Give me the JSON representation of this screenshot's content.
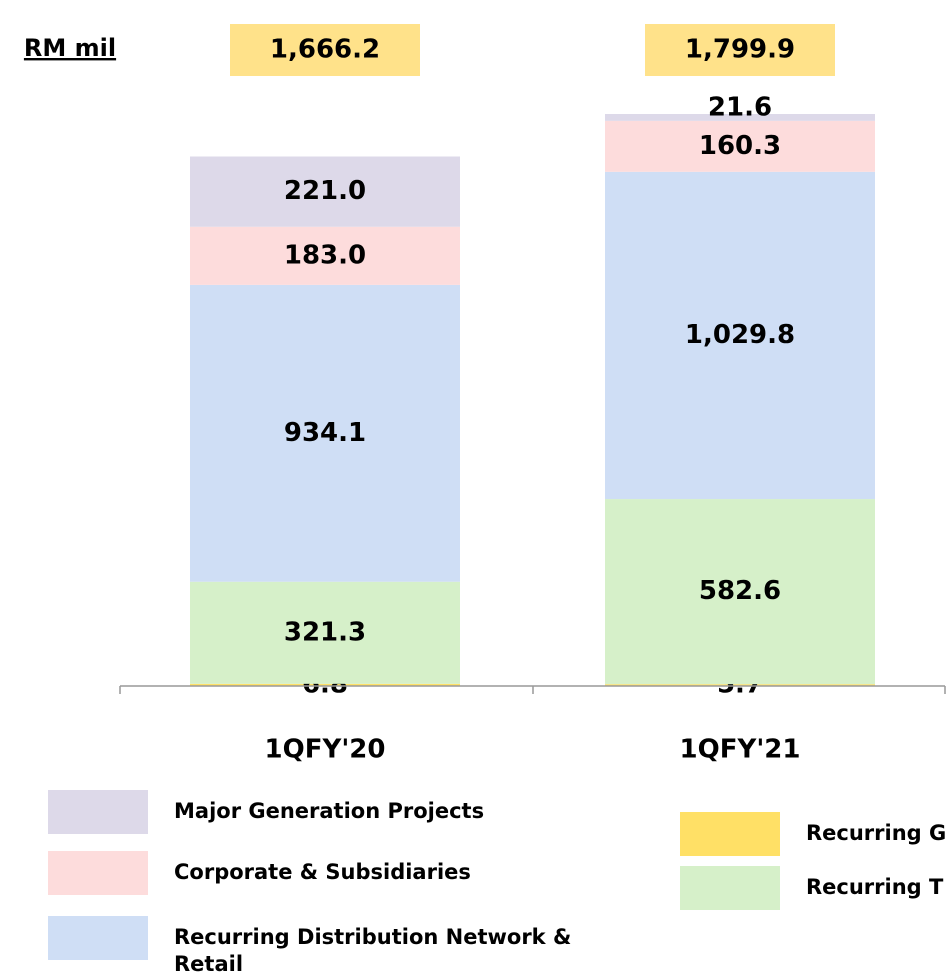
{
  "chart_data": {
    "type": "stacked_bar",
    "unit_label": "RM mil",
    "categories": [
      "1QFY'20",
      "1QFY'21"
    ],
    "totals": [
      1666.2,
      1799.9
    ],
    "total_labels": [
      "1,666.2",
      "1,799.9"
    ],
    "total_color": "#ffe28a",
    "series": [
      {
        "name": "Recurring G",
        "color": "#ffe066",
        "values": [
          6.8,
          5.7
        ],
        "value_labels": [
          "6.8",
          "5.7"
        ]
      },
      {
        "name": "Recurring T",
        "color": "#d6f0c9",
        "values": [
          321.3,
          582.6
        ],
        "value_labels": [
          "321.3",
          "582.6"
        ]
      },
      {
        "name": "Recurring Distribution Network & Retail",
        "color": "#cfdef5",
        "values": [
          934.1,
          1029.8
        ],
        "value_labels": [
          "934.1",
          "1,029.8"
        ]
      },
      {
        "name": "Corporate & Subsidiaries",
        "color": "#fddcdc",
        "values": [
          183.0,
          160.3
        ],
        "value_labels": [
          "183.0",
          "160.3"
        ]
      },
      {
        "name": "Major Generation Projects",
        "color": "#ddd9e9",
        "values": [
          221.0,
          21.6
        ],
        "value_labels": [
          "221.0",
          "21.6"
        ]
      }
    ]
  }
}
